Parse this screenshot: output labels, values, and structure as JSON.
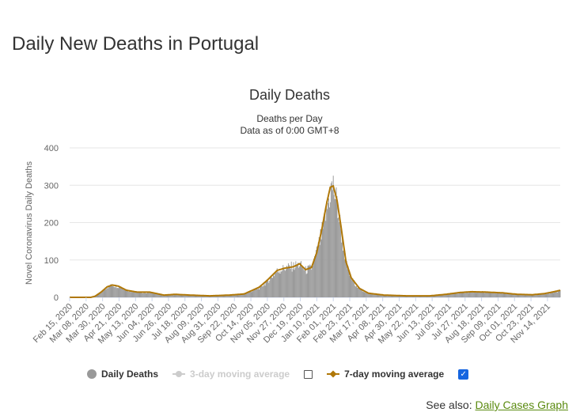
{
  "page": {
    "title": "Daily New Deaths in Portugal",
    "see_also_label": "See also:",
    "see_also_link": "Daily Cases Graph"
  },
  "legend": {
    "items": [
      {
        "label": "Daily Deaths",
        "color": "#999999",
        "checked": null,
        "muted": false,
        "symbol": "circle"
      },
      {
        "label": "3-day moving average",
        "color": "#cccccc",
        "checked": false,
        "muted": true,
        "symbol": "line-dot"
      },
      {
        "label": "7-day moving average",
        "color": "#b07808",
        "checked": true,
        "muted": false,
        "symbol": "line-diamond"
      }
    ]
  },
  "chart_data": {
    "type": "bar",
    "title": "Daily Deaths",
    "subtitle_lines": [
      "Deaths per Day",
      "Data as of 0:00 GMT+8"
    ],
    "ylabel": "Novel Coronavirus Daily Deaths",
    "xlabel": "",
    "ylim": [
      0,
      400
    ],
    "yticks": [
      0,
      100,
      200,
      300,
      400
    ],
    "grid": true,
    "x_start": "2020-02-15",
    "x_end": "2021-12-01",
    "xtick_labels": [
      "Feb 15, 2020",
      "Mar 08, 2020",
      "Mar 30, 2020",
      "Apr 21, 2020",
      "May 13, 2020",
      "Jun 04, 2020",
      "Jun 26, 2020",
      "Jul 18, 2020",
      "Aug 09, 2020",
      "Aug 31, 2020",
      "Sep 22, 2020",
      "Oct 14, 2020",
      "Nov 05, 2020",
      "Nov 27, 2020",
      "Dec 19, 2020",
      "Jan 10, 2021",
      "Feb 01, 2021",
      "Feb 23, 2021",
      "Mar 17, 2021",
      "Apr 08, 2021",
      "Apr 30, 2021",
      "May 22, 2021",
      "Jun 13, 2021",
      "Jul 05, 2021",
      "Jul 27, 2021",
      "Aug 18, 2021",
      "Sep 09, 2021",
      "Oct 01, 2021",
      "Oct 23, 2021",
      "Nov 14, 2021"
    ],
    "daily_deaths_keypoints": [
      [
        "2020-02-15",
        0
      ],
      [
        "2020-03-14",
        0
      ],
      [
        "2020-03-20",
        2
      ],
      [
        "2020-03-28",
        12
      ],
      [
        "2020-04-04",
        26
      ],
      [
        "2020-04-12",
        33
      ],
      [
        "2020-04-22",
        28
      ],
      [
        "2020-05-05",
        17
      ],
      [
        "2020-05-20",
        13
      ],
      [
        "2020-06-05",
        12
      ],
      [
        "2020-06-20",
        5
      ],
      [
        "2020-07-05",
        7
      ],
      [
        "2020-07-25",
        5
      ],
      [
        "2020-08-20",
        3
      ],
      [
        "2020-09-15",
        5
      ],
      [
        "2020-10-05",
        8
      ],
      [
        "2020-10-25",
        25
      ],
      [
        "2020-11-05",
        42
      ],
      [
        "2020-11-18",
        70
      ],
      [
        "2020-11-28",
        78
      ],
      [
        "2020-12-10",
        83
      ],
      [
        "2020-12-18",
        88
      ],
      [
        "2020-12-26",
        72
      ],
      [
        "2021-01-03",
        78
      ],
      [
        "2021-01-10",
        120
      ],
      [
        "2021-01-18",
        180
      ],
      [
        "2021-01-24",
        240
      ],
      [
        "2021-01-29",
        290
      ],
      [
        "2021-02-01",
        296
      ],
      [
        "2021-02-06",
        250
      ],
      [
        "2021-02-12",
        170
      ],
      [
        "2021-02-18",
        90
      ],
      [
        "2021-02-25",
        50
      ],
      [
        "2021-03-08",
        22
      ],
      [
        "2021-03-20",
        10
      ],
      [
        "2021-04-10",
        5
      ],
      [
        "2021-05-10",
        3
      ],
      [
        "2021-06-10",
        3
      ],
      [
        "2021-07-01",
        7
      ],
      [
        "2021-07-20",
        12
      ],
      [
        "2021-08-05",
        15
      ],
      [
        "2021-08-25",
        14
      ],
      [
        "2021-09-15",
        11
      ],
      [
        "2021-10-05",
        7
      ],
      [
        "2021-10-25",
        6
      ],
      [
        "2021-11-10",
        9
      ],
      [
        "2021-11-25",
        14
      ],
      [
        "2021-12-01",
        18
      ]
    ],
    "ma7_keypoints": [
      [
        "2020-02-15",
        0
      ],
      [
        "2020-03-14",
        0
      ],
      [
        "2020-03-20",
        3
      ],
      [
        "2020-03-28",
        14
      ],
      [
        "2020-04-05",
        28
      ],
      [
        "2020-04-12",
        33
      ],
      [
        "2020-04-20",
        30
      ],
      [
        "2020-05-01",
        19
      ],
      [
        "2020-05-15",
        14
      ],
      [
        "2020-06-01",
        14
      ],
      [
        "2020-06-20",
        6
      ],
      [
        "2020-07-05",
        8
      ],
      [
        "2020-07-25",
        6
      ],
      [
        "2020-08-20",
        4
      ],
      [
        "2020-09-15",
        6
      ],
      [
        "2020-10-05",
        9
      ],
      [
        "2020-10-25",
        27
      ],
      [
        "2020-11-05",
        46
      ],
      [
        "2020-11-18",
        72
      ],
      [
        "2020-11-28",
        78
      ],
      [
        "2020-12-10",
        82
      ],
      [
        "2020-12-18",
        90
      ],
      [
        "2020-12-26",
        74
      ],
      [
        "2021-01-03",
        80
      ],
      [
        "2021-01-10",
        120
      ],
      [
        "2021-01-17",
        185
      ],
      [
        "2021-01-23",
        250
      ],
      [
        "2021-01-28",
        295
      ],
      [
        "2021-02-01",
        298
      ],
      [
        "2021-02-06",
        260
      ],
      [
        "2021-02-12",
        180
      ],
      [
        "2021-02-18",
        95
      ],
      [
        "2021-02-25",
        52
      ],
      [
        "2021-03-08",
        24
      ],
      [
        "2021-03-20",
        11
      ],
      [
        "2021-04-10",
        6
      ],
      [
        "2021-05-10",
        4
      ],
      [
        "2021-06-10",
        4
      ],
      [
        "2021-07-01",
        8
      ],
      [
        "2021-07-20",
        13
      ],
      [
        "2021-08-05",
        15
      ],
      [
        "2021-08-25",
        14
      ],
      [
        "2021-09-15",
        12
      ],
      [
        "2021-10-05",
        8
      ],
      [
        "2021-10-25",
        7
      ],
      [
        "2021-11-10",
        10
      ],
      [
        "2021-11-25",
        16
      ],
      [
        "2021-12-01",
        19
      ]
    ],
    "series": [
      {
        "name": "Daily Deaths",
        "color": "#999999"
      },
      {
        "name": "3-day moving average",
        "color": "#cccccc",
        "visible": false
      },
      {
        "name": "7-day moving average",
        "color": "#b07808",
        "visible": true
      }
    ]
  }
}
